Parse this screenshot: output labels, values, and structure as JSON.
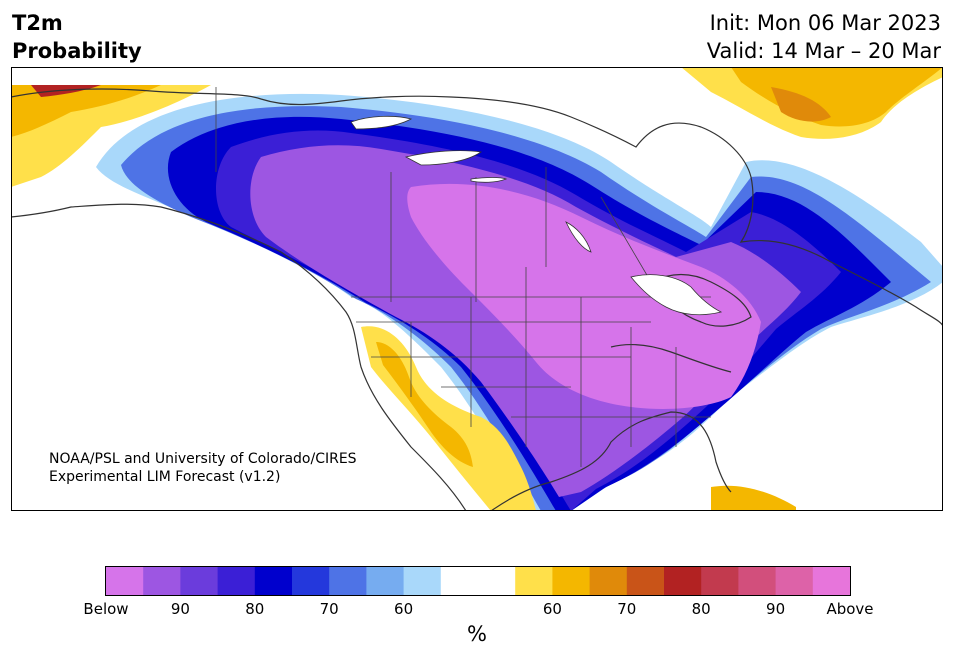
{
  "header": {
    "variable_line1": "T2m",
    "variable_line2": "Probability",
    "init": "Init: Mon 06 Mar 2023",
    "valid": "Valid: 14 Mar – 20 Mar"
  },
  "credit": {
    "line1": "NOAA/PSL and University of Colorado/CIRES",
    "line2": "Experimental LIM Forecast (v1.2)"
  },
  "colorbar": {
    "units": "%",
    "colors": [
      "#d674ea",
      "#9d56e2",
      "#6b3cdc",
      "#3b1fd6",
      "#0000cd",
      "#2438dc",
      "#4e73e6",
      "#76acf0",
      "#a9d8fa",
      "#ffffff",
      "#ffffff",
      "#ffe04a",
      "#f4b700",
      "#e08a0a",
      "#c95418",
      "#b22222",
      "#c23a4e",
      "#d24f7c",
      "#dd62a8",
      "#e775db"
    ],
    "tick_labels": [
      "Below",
      "90",
      "80",
      "70",
      "60",
      "60",
      "70",
      "80",
      "90",
      "Above"
    ]
  },
  "palette": {
    "below_max": "#d674ea",
    "below_mid": "#9d56e2",
    "below_blue": "#0000cd",
    "below_light": "#a9d8fa",
    "above_light": "#ffe04a",
    "above_mid": "#f4b700",
    "above_dark": "#b22222"
  }
}
